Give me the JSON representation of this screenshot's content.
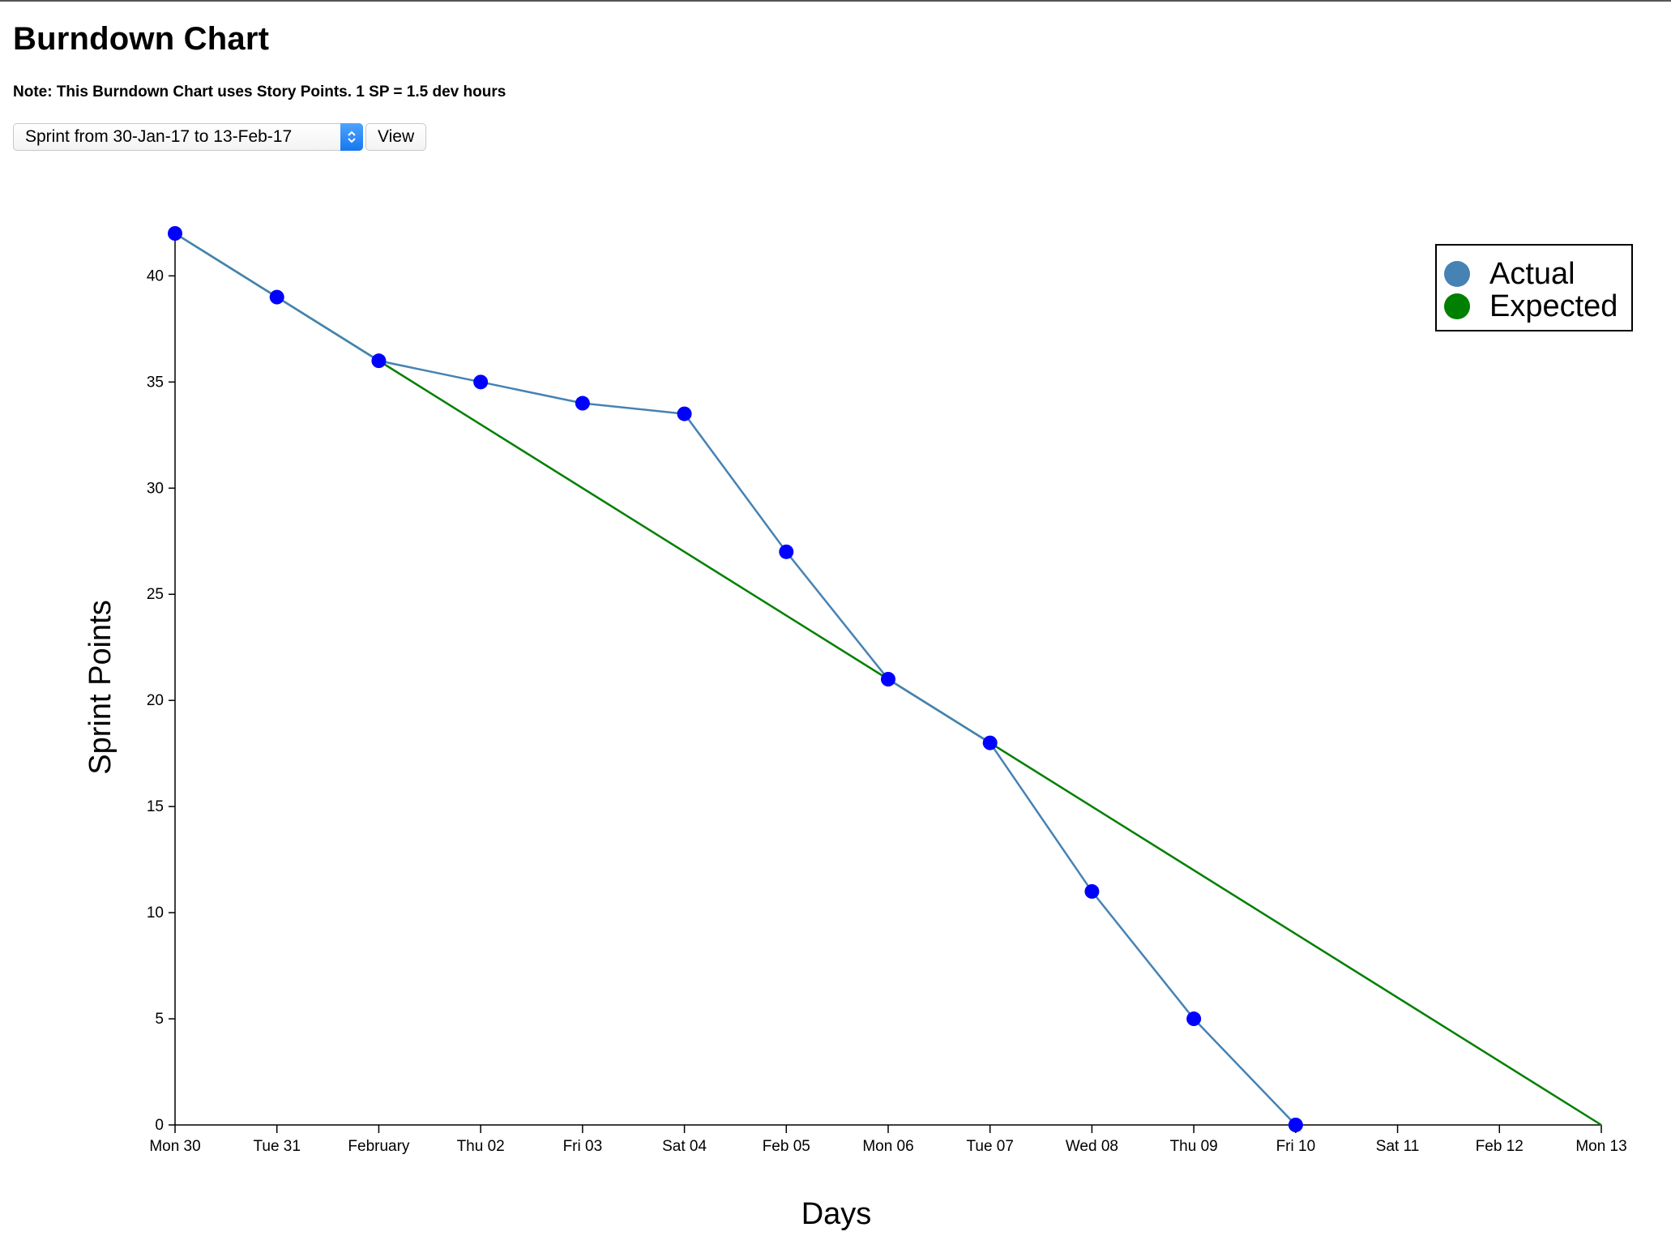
{
  "page": {
    "title": "Burndown Chart",
    "note": "Note: This Burndown Chart uses Story Points. 1 SP = 1.5 dev hours"
  },
  "controls": {
    "sprint_select_value": "Sprint from 30-Jan-17 to 13-Feb-17",
    "view_button_label": "View"
  },
  "icons": {
    "select_arrows": "chevron-up-down-icon"
  },
  "chart_data": {
    "type": "line",
    "title": "",
    "xlabel": "Days",
    "ylabel": "Sprint Points",
    "x_ticks": [
      "Mon 30",
      "Tue 31",
      "February",
      "Thu 02",
      "Fri 03",
      "Sat 04",
      "Feb 05",
      "Mon 06",
      "Tue 07",
      "Wed 08",
      "Thu 09",
      "Fri 10",
      "Sat 11",
      "Feb 12",
      "Mon 13"
    ],
    "x_dates": [
      "2017-01-30",
      "2017-01-31",
      "2017-02-01",
      "2017-02-02",
      "2017-02-03",
      "2017-02-04",
      "2017-02-05",
      "2017-02-06",
      "2017-02-07",
      "2017-02-08",
      "2017-02-09",
      "2017-02-10",
      "2017-02-11",
      "2017-02-12",
      "2017-02-13"
    ],
    "y_ticks": [
      0,
      5,
      10,
      15,
      20,
      25,
      30,
      35,
      40
    ],
    "ylim": [
      0,
      42
    ],
    "grid": false,
    "legend_position": "top-right",
    "series": [
      {
        "name": "Actual",
        "color": "#4682b4",
        "marker_color": "#0000ff",
        "x": [
          "2017-01-30",
          "2017-01-31",
          "2017-02-01",
          "2017-02-02",
          "2017-02-03",
          "2017-02-04",
          "2017-02-05",
          "2017-02-06",
          "2017-02-07",
          "2017-02-08",
          "2017-02-09",
          "2017-02-10"
        ],
        "y": [
          42,
          39,
          36,
          35,
          34,
          33.5,
          27,
          21,
          18,
          11,
          5,
          0
        ]
      },
      {
        "name": "Expected",
        "color": "#008000",
        "x": [
          "2017-01-30",
          "2017-02-13"
        ],
        "y": [
          42,
          0
        ]
      }
    ]
  }
}
